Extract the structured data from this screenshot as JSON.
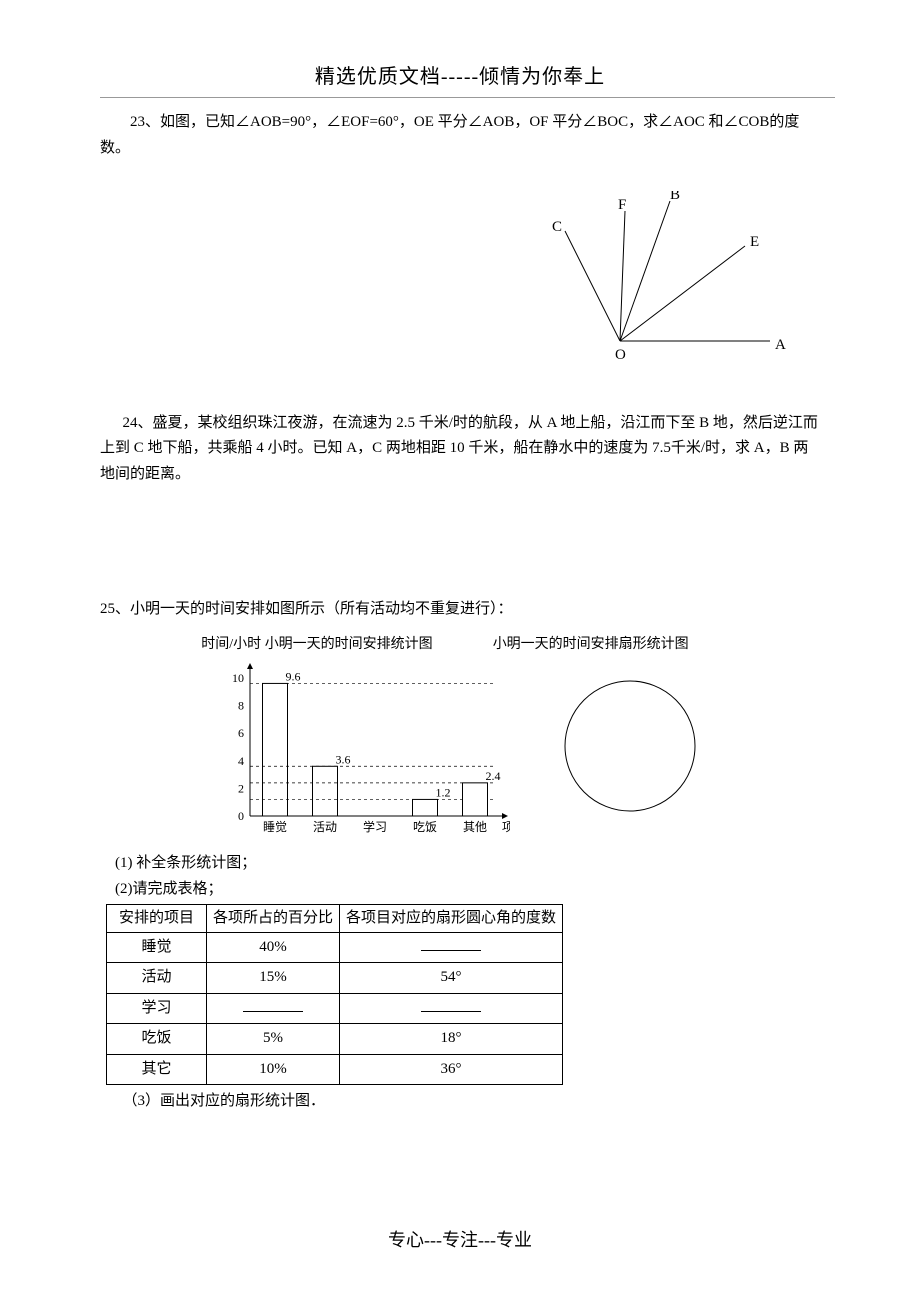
{
  "header": "精选优质文档-----倾情为你奉上",
  "footer": "专心---专注---专业",
  "p23": {
    "text": "23、如图，已知∠AOB=90°，∠EOF=60°，OE 平分∠AOB，OF 平分∠BOC，求∠AOC 和∠COB的度数。",
    "diagram": {
      "labels": {
        "O": "O",
        "A": "A",
        "B": "B",
        "C": "C",
        "E": "E",
        "F": "F"
      },
      "stroke": "#000000",
      "stroke_width": 1,
      "font_size": 15
    }
  },
  "p24": {
    "text": "24、盛夏，某校组织珠江夜游，在流速为 2.5 千米/时的航段，从 A 地上船，沿江而下至 B 地，然后逆江而上到 C 地下船，共乘船 4 小时。已知 A，C 两地相距 10 千米，船在静水中的速度为 7.5千米/时，求 A，B 两地间的距离。"
  },
  "p25": {
    "lead": "25、小明一天的时间安排如图所示（所有活动均不重复进行）：",
    "bar_title_prefix": "时间/小时",
    "bar_title": "小明一天的时间安排统计图",
    "pie_title": "小明一天的时间安排扇形统计图",
    "bar_chart": {
      "type": "bar",
      "y_axis_label": "时间/小时",
      "x_axis_label": "项目",
      "categories": [
        "睡觉",
        "活动",
        "学习",
        "吃饭",
        "其他"
      ],
      "values": [
        9.6,
        3.6,
        null,
        1.2,
        2.4
      ],
      "shown_labels": [
        "9.6",
        "3.6",
        "",
        "1.2",
        "2.4"
      ],
      "y_ticks": [
        0,
        2,
        4,
        6,
        8,
        10
      ],
      "ylim": [
        0,
        10.5
      ],
      "bar_color": "#ffffff",
      "bar_border": "#000000",
      "grid_dash": "3,3",
      "axis_color": "#000000",
      "label_fontsize": 12,
      "tick_fontsize": 12,
      "bar_width_ratio": 0.5
    },
    "pie_chart": {
      "type": "pie",
      "empty": true,
      "stroke": "#000000",
      "fill": "#ffffff",
      "radius": 65
    },
    "q1": "(1) 补全条形统计图；",
    "q2": "(2)请完成表格；",
    "q3": "（3）画出对应的扇形统计图．",
    "table": {
      "columns": [
        "安排的项目",
        "各项所占的百分比",
        "各项目对应的扇形圆心角的度数"
      ],
      "rows": [
        [
          "睡觉",
          "40%",
          "__blank__"
        ],
        [
          "活动",
          "15%",
          "54°"
        ],
        [
          "学习",
          "__blank__",
          "__blank__"
        ],
        [
          "吃饭",
          "5%",
          "18°"
        ],
        [
          "其它",
          "10%",
          "36°"
        ]
      ]
    }
  }
}
